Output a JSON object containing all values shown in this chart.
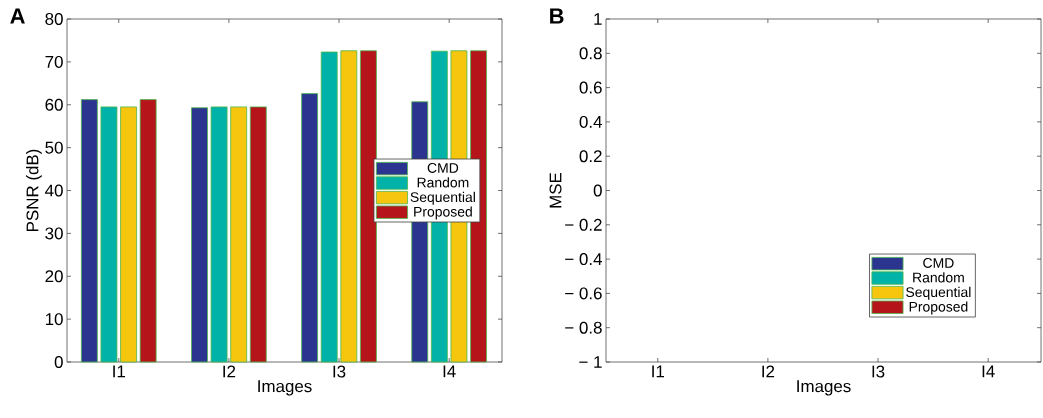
{
  "chart_data": [
    {
      "type": "bar",
      "title": "A",
      "xlabel": "Images",
      "ylabel": "PSNR (dB)",
      "categories": [
        "I1",
        "I2",
        "I3",
        "I4"
      ],
      "series": [
        {
          "name": "CMD",
          "color": "#2b3590",
          "values": [
            61.2,
            59.3,
            62.6,
            60.7
          ]
        },
        {
          "name": "Random",
          "color": "#00b2a7",
          "values": [
            59.5,
            59.5,
            72.3,
            72.5
          ]
        },
        {
          "name": "Sequential",
          "color": "#f6c60e",
          "values": [
            59.5,
            59.5,
            72.6,
            72.6
          ]
        },
        {
          "name": "Proposed",
          "color": "#b5141b",
          "values": [
            61.2,
            59.5,
            72.6,
            72.6
          ]
        }
      ],
      "ylim": [
        0,
        80
      ],
      "yticks": [
        0,
        10,
        20,
        30,
        40,
        50,
        60,
        70,
        80
      ],
      "legend": "right"
    },
    {
      "type": "bar",
      "title": "B",
      "xlabel": "Images",
      "ylabel": "MSE",
      "categories": [
        "I1",
        "I2",
        "I3",
        "I4"
      ],
      "series": [
        {
          "name": "CMD",
          "color": "#2b3590",
          "values": [
            0,
            0,
            0,
            0
          ]
        },
        {
          "name": "Random",
          "color": "#00b2a7",
          "values": [
            0,
            0,
            0,
            0
          ]
        },
        {
          "name": "Sequential",
          "color": "#f6c60e",
          "values": [
            0,
            0,
            0,
            0
          ]
        },
        {
          "name": "Proposed",
          "color": "#b5141b",
          "values": [
            0,
            0,
            0,
            0
          ]
        }
      ],
      "ylim": [
        -1,
        1
      ],
      "yticks": [
        {
          "value": -1,
          "label": "− 1"
        },
        {
          "value": -0.8,
          "label": "− 0.8"
        },
        {
          "value": -0.6,
          "label": "− 0.6"
        },
        {
          "value": -0.4,
          "label": "− 0.4"
        },
        {
          "value": -0.2,
          "label": "− 0.2"
        },
        0,
        0.2,
        0.4,
        0.6,
        0.8,
        1
      ],
      "legend": "bottom right"
    }
  ]
}
